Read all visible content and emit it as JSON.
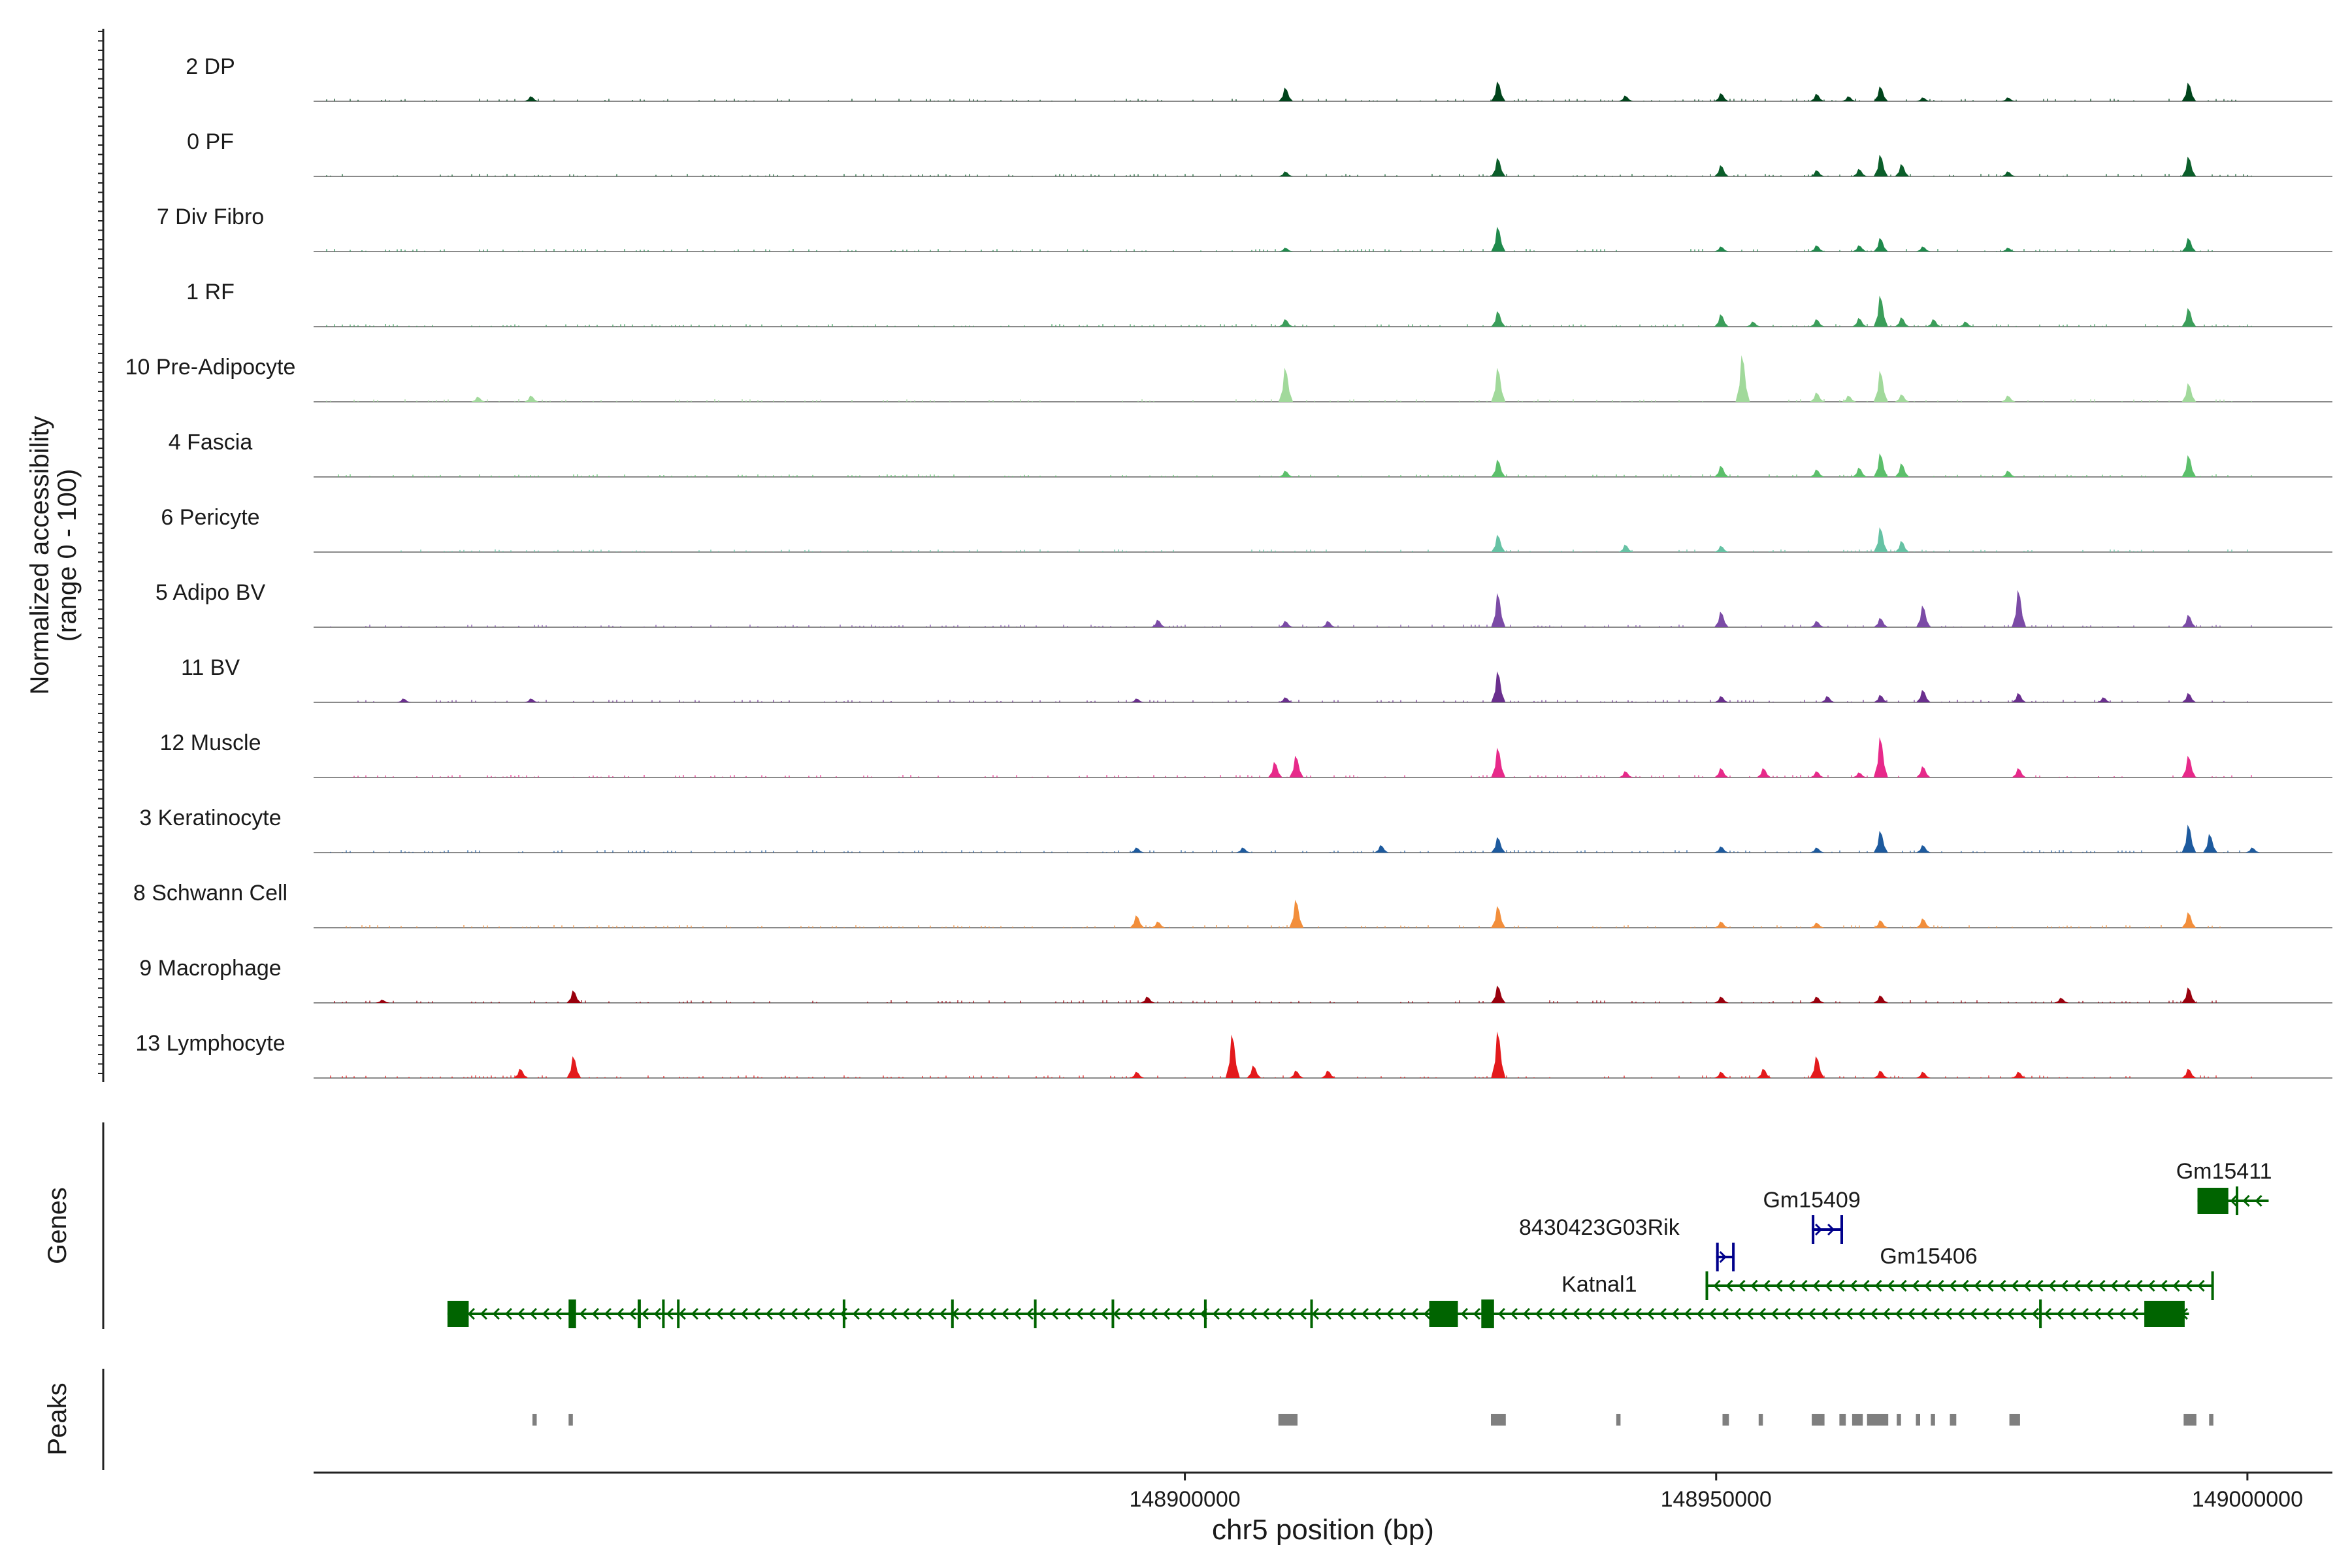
{
  "chart_data": {
    "type": "area",
    "title": "",
    "chromosome": "chr5",
    "xlabel": "chr5 position (bp)",
    "ylabel_line1": "Normalized accessibility",
    "ylabel_line2": "(range 0 - 100)",
    "xlim": [
      148818000,
      149008000
    ],
    "ylim": [
      0,
      100
    ],
    "x_ticks": [
      148900000,
      148950000,
      149000000
    ],
    "x_tick_labels": [
      "148900000",
      "148950000",
      "149000000"
    ],
    "panel_labels": {
      "genes": "Genes",
      "peaks": "Peaks"
    },
    "tracks": [
      {
        "name": "2 DP",
        "color": "#00441B",
        "peaks": [
          [
            148838,
            8
          ],
          [
            148909,
            22
          ],
          [
            148929,
            32
          ],
          [
            148941,
            9
          ],
          [
            148950,
            13
          ],
          [
            148959,
            12
          ],
          [
            148962,
            8
          ],
          [
            148965,
            24
          ],
          [
            148969,
            6
          ],
          [
            148977,
            6
          ],
          [
            148994,
            30
          ]
        ]
      },
      {
        "name": "0 PF",
        "color": "#0B5E2A",
        "peaks": [
          [
            148909,
            8
          ],
          [
            148929,
            30
          ],
          [
            148950,
            18
          ],
          [
            148959,
            10
          ],
          [
            148963,
            12
          ],
          [
            148965,
            35
          ],
          [
            148967,
            20
          ],
          [
            148977,
            8
          ],
          [
            148994,
            32
          ]
        ]
      },
      {
        "name": "7 Div Fibro",
        "color": "#1F8A4C",
        "peaks": [
          [
            148909,
            6
          ],
          [
            148929,
            40
          ],
          [
            148950,
            8
          ],
          [
            148959,
            10
          ],
          [
            148963,
            10
          ],
          [
            148965,
            22
          ],
          [
            148969,
            8
          ],
          [
            148977,
            6
          ],
          [
            148994,
            22
          ]
        ]
      },
      {
        "name": "1 RF",
        "color": "#3B9E5A",
        "peaks": [
          [
            148909,
            12
          ],
          [
            148929,
            25
          ],
          [
            148950,
            20
          ],
          [
            148953,
            8
          ],
          [
            148959,
            12
          ],
          [
            148963,
            14
          ],
          [
            148965,
            50
          ],
          [
            148967,
            15
          ],
          [
            148970,
            12
          ],
          [
            148973,
            8
          ],
          [
            148994,
            30
          ]
        ]
      },
      {
        "name": "10 Pre-Adipocyte",
        "color": "#A1D99B",
        "peaks": [
          [
            148833,
            8
          ],
          [
            148838,
            10
          ],
          [
            148909,
            55
          ],
          [
            148929,
            55
          ],
          [
            148952,
            75
          ],
          [
            148959,
            15
          ],
          [
            148962,
            10
          ],
          [
            148965,
            50
          ],
          [
            148967,
            12
          ],
          [
            148977,
            10
          ],
          [
            148994,
            30
          ]
        ]
      },
      {
        "name": "4 Fascia",
        "color": "#5CBF6B",
        "peaks": [
          [
            148909,
            10
          ],
          [
            148929,
            28
          ],
          [
            148950,
            18
          ],
          [
            148959,
            12
          ],
          [
            148963,
            15
          ],
          [
            148965,
            38
          ],
          [
            148967,
            22
          ],
          [
            148977,
            10
          ],
          [
            148994,
            35
          ]
        ]
      },
      {
        "name": "6 Pericyte",
        "color": "#66C2A4",
        "peaks": [
          [
            148929,
            28
          ],
          [
            148941,
            12
          ],
          [
            148950,
            10
          ],
          [
            148965,
            40
          ],
          [
            148967,
            18
          ]
        ]
      },
      {
        "name": "5 Adipo BV",
        "color": "#7B4BA6",
        "peaks": [
          [
            148897,
            12
          ],
          [
            148909,
            10
          ],
          [
            148913,
            10
          ],
          [
            148929,
            55
          ],
          [
            148950,
            25
          ],
          [
            148959,
            10
          ],
          [
            148965,
            15
          ],
          [
            148969,
            35
          ],
          [
            148978,
            60
          ],
          [
            148994,
            20
          ]
        ]
      },
      {
        "name": "11 BV",
        "color": "#6A2F8E",
        "peaks": [
          [
            148826,
            6
          ],
          [
            148838,
            6
          ],
          [
            148895,
            6
          ],
          [
            148909,
            8
          ],
          [
            148929,
            50
          ],
          [
            148950,
            10
          ],
          [
            148960,
            10
          ],
          [
            148965,
            12
          ],
          [
            148969,
            20
          ],
          [
            148978,
            15
          ],
          [
            148986,
            8
          ],
          [
            148994,
            15
          ]
        ]
      },
      {
        "name": "12 Muscle",
        "color": "#E7298A",
        "peaks": [
          [
            148908,
            25
          ],
          [
            148910,
            35
          ],
          [
            148929,
            48
          ],
          [
            148941,
            10
          ],
          [
            148950,
            15
          ],
          [
            148954,
            15
          ],
          [
            148959,
            10
          ],
          [
            148963,
            8
          ],
          [
            148965,
            65
          ],
          [
            148969,
            18
          ],
          [
            148978,
            15
          ],
          [
            148994,
            35
          ]
        ]
      },
      {
        "name": "3 Keratinocyte",
        "color": "#1D5A9E",
        "peaks": [
          [
            148895,
            8
          ],
          [
            148905,
            8
          ],
          [
            148918,
            12
          ],
          [
            148929,
            25
          ],
          [
            148950,
            10
          ],
          [
            148959,
            8
          ],
          [
            148965,
            35
          ],
          [
            148969,
            12
          ],
          [
            148994,
            45
          ],
          [
            148996,
            30
          ],
          [
            149000,
            8
          ]
        ]
      },
      {
        "name": "8 Schwann Cell",
        "color": "#F28E3B",
        "peaks": [
          [
            148895,
            20
          ],
          [
            148897,
            10
          ],
          [
            148910,
            45
          ],
          [
            148929,
            35
          ],
          [
            148950,
            10
          ],
          [
            148959,
            8
          ],
          [
            148965,
            12
          ],
          [
            148969,
            15
          ],
          [
            148994,
            25
          ]
        ]
      },
      {
        "name": "9 Macrophage",
        "color": "#99000D",
        "peaks": [
          [
            148824,
            5
          ],
          [
            148842,
            20
          ],
          [
            148896,
            10
          ],
          [
            148929,
            28
          ],
          [
            148950,
            10
          ],
          [
            148959,
            10
          ],
          [
            148965,
            12
          ],
          [
            148982,
            8
          ],
          [
            148994,
            25
          ]
        ]
      },
      {
        "name": "13 Lymphocyte",
        "color": "#E31A1C",
        "peaks": [
          [
            148837,
            15
          ],
          [
            148842,
            35
          ],
          [
            148895,
            10
          ],
          [
            148904,
            70
          ],
          [
            148906,
            20
          ],
          [
            148910,
            12
          ],
          [
            148913,
            12
          ],
          [
            148929,
            75
          ],
          [
            148950,
            10
          ],
          [
            148954,
            15
          ],
          [
            148959,
            35
          ],
          [
            148965,
            12
          ],
          [
            148969,
            10
          ],
          [
            148978,
            10
          ],
          [
            148994,
            15
          ]
        ]
      }
    ],
    "genes": [
      {
        "name": "Katnal1",
        "strand": "-",
        "start": 148830600,
        "end": 148994500,
        "row": 0,
        "color": "#006400",
        "exons": [
          [
            148830600,
            148832600
          ],
          [
            148842000,
            148842700
          ],
          [
            148848500,
            148848800
          ],
          [
            148850800,
            148851000
          ],
          [
            148852200,
            148852400
          ],
          [
            148867800,
            148868000
          ],
          [
            148878000,
            148878200
          ],
          [
            148885800,
            148886000
          ],
          [
            148893100,
            148893300
          ],
          [
            148901800,
            148902000
          ],
          [
            148911800,
            148912000
          ],
          [
            148923000,
            148925700
          ],
          [
            148927900,
            148929100
          ],
          [
            148980400,
            148980500
          ],
          [
            148990300,
            148994100
          ]
        ],
        "label_x": 148939000
      },
      {
        "name": "Gm15406",
        "strand": "-",
        "start": 148949000,
        "end": 148996800,
        "row": 1,
        "color": "#006400",
        "exons": [
          [
            148949000,
            148949200
          ],
          [
            148996600,
            148996800
          ]
        ],
        "label_x": 148970000
      },
      {
        "name": "8430423G03Rik",
        "strand": "+",
        "start": 148950000,
        "end": 148951600,
        "row": 2,
        "color": "#00008B",
        "exons": [
          [
            148950000,
            148950100
          ],
          [
            148951500,
            148951600
          ]
        ],
        "label_x": 148939000
      },
      {
        "name": "Gm15409",
        "strand": "+",
        "start": 148959000,
        "end": 148961800,
        "row": 3,
        "color": "#00008B",
        "exons": [
          [
            148959000,
            148959100
          ],
          [
            148961700,
            148961800
          ]
        ],
        "label_x": 148959000
      },
      {
        "name": "Gm15411",
        "strand": "-",
        "start": 148995300,
        "end": 149002000,
        "row": 4,
        "color": "#006400",
        "exons": [
          [
            148995300,
            148998200
          ],
          [
            148998900,
            148999100
          ]
        ],
        "label_x": 148997800
      }
    ],
    "peaks": [
      [
        148838600,
        148839000
      ],
      [
        148842000,
        148842400
      ],
      [
        148908800,
        148910600
      ],
      [
        148928800,
        148930200
      ],
      [
        148940600,
        148941000
      ],
      [
        148950600,
        148951200
      ],
      [
        148954000,
        148954400
      ],
      [
        148959000,
        148960200
      ],
      [
        148961600,
        148962200
      ],
      [
        148962800,
        148963800
      ],
      [
        148964200,
        148966200
      ],
      [
        148967000,
        148967400
      ],
      [
        148968800,
        148969200
      ],
      [
        148970200,
        148970600
      ],
      [
        148972000,
        148972600
      ],
      [
        148977600,
        148978600
      ],
      [
        148994000,
        148995200
      ],
      [
        148996400,
        148996800
      ]
    ]
  }
}
